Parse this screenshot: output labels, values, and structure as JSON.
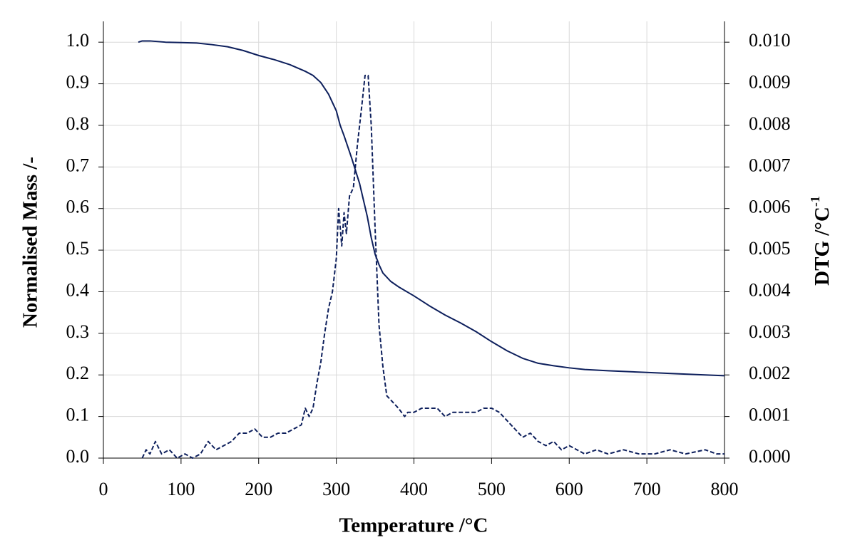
{
  "chart_data": {
    "type": "line",
    "xlabel": "Temperature /°C",
    "ylabel": "Normalised Mass /-",
    "y2label": {
      "text": "DTG  /°C",
      "superscript": "-1"
    },
    "xlim": [
      0,
      800
    ],
    "xticks": [
      0,
      100,
      200,
      300,
      400,
      500,
      600,
      700,
      800
    ],
    "ylim": [
      0,
      1.05
    ],
    "yticks": [
      {
        "value": 0,
        "label": "0.0"
      },
      0.1,
      0.2,
      0.3,
      0.4,
      0.5,
      0.6,
      0.7,
      0.8,
      0.9,
      {
        "value": 1,
        "label": "1.0"
      }
    ],
    "y2lim": [
      0,
      0.0105
    ],
    "y2ticks": [
      {
        "value": 0,
        "label": "0.000"
      },
      0.001,
      0.002,
      0.003,
      0.004,
      0.005,
      0.006,
      0.007,
      0.008,
      0.009,
      {
        "value": 0.01,
        "label": "0.010"
      }
    ],
    "grid": true,
    "series": [
      {
        "color": "#0d1f5c",
        "dashed": false,
        "x": [
          45,
          50,
          60,
          80,
          100,
          120,
          140,
          160,
          180,
          200,
          220,
          240,
          260,
          270,
          280,
          290,
          300,
          305,
          310,
          320,
          330,
          340,
          345,
          350,
          355,
          360,
          370,
          380,
          400,
          420,
          440,
          460,
          480,
          500,
          520,
          540,
          560,
          580,
          600,
          620,
          650,
          700,
          750,
          800
        ],
        "values": [
          1.0,
          1.003,
          1.003,
          1.0,
          0.999,
          0.998,
          0.994,
          0.989,
          0.98,
          0.968,
          0.958,
          0.946,
          0.93,
          0.92,
          0.903,
          0.875,
          0.835,
          0.8,
          0.775,
          0.72,
          0.66,
          0.58,
          0.53,
          0.49,
          0.465,
          0.445,
          0.425,
          0.412,
          0.39,
          0.366,
          0.344,
          0.325,
          0.304,
          0.28,
          0.258,
          0.24,
          0.228,
          0.222,
          0.217,
          0.213,
          0.21,
          0.206,
          0.202,
          0.198
        ]
      },
      {
        "color": "#0d1f5c",
        "dashed": true,
        "axis": "y2",
        "x": [
          50,
          55,
          60,
          67,
          75,
          85,
          95,
          105,
          115,
          125,
          135,
          145,
          155,
          165,
          175,
          185,
          195,
          205,
          215,
          225,
          235,
          245,
          255,
          260,
          265,
          270,
          275,
          280,
          285,
          290,
          295,
          300,
          303,
          307,
          310,
          313,
          317,
          322,
          327,
          333,
          337,
          341,
          345,
          350,
          355,
          360,
          365,
          370,
          380,
          388,
          392,
          400,
          410,
          420,
          430,
          440,
          450,
          460,
          470,
          480,
          490,
          500,
          510,
          520,
          530,
          540,
          550,
          560,
          570,
          580,
          590,
          600,
          610,
          620,
          635,
          650,
          670,
          690,
          710,
          730,
          750,
          775,
          790,
          800
        ],
        "values": [
          0.0,
          0.0002,
          0.0001,
          0.0004,
          0.0001,
          0.0002,
          0.0,
          0.0001,
          0.0,
          0.0001,
          0.0004,
          0.0002,
          0.0003,
          0.0004,
          0.0006,
          0.0006,
          0.0007,
          0.0005,
          0.0005,
          0.0006,
          0.0006,
          0.0007,
          0.0008,
          0.0012,
          0.001,
          0.0012,
          0.0018,
          0.0023,
          0.003,
          0.0036,
          0.004,
          0.0048,
          0.006,
          0.0051,
          0.0059,
          0.0054,
          0.0063,
          0.0065,
          0.0075,
          0.0085,
          0.0092,
          0.0092,
          0.008,
          0.0055,
          0.0032,
          0.0022,
          0.0015,
          0.0014,
          0.0012,
          0.001,
          0.0011,
          0.0011,
          0.0012,
          0.0012,
          0.0012,
          0.001,
          0.0011,
          0.0011,
          0.0011,
          0.0011,
          0.0012,
          0.0012,
          0.0011,
          0.0009,
          0.0007,
          0.0005,
          0.0006,
          0.0004,
          0.0003,
          0.0004,
          0.0002,
          0.0003,
          0.0002,
          0.0001,
          0.0002,
          0.0001,
          0.0002,
          0.0001,
          0.0001,
          0.0002,
          0.0001,
          0.0002,
          0.0001,
          0.0001
        ]
      }
    ]
  }
}
